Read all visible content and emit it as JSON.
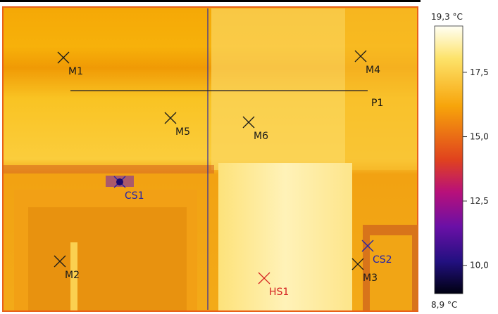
{
  "image": {
    "markers": [
      {
        "label": "M1",
        "kind": "spot"
      },
      {
        "label": "M2",
        "kind": "spot"
      },
      {
        "label": "M3",
        "kind": "spot"
      },
      {
        "label": "M4",
        "kind": "spot"
      },
      {
        "label": "M5",
        "kind": "spot"
      },
      {
        "label": "M6",
        "kind": "spot"
      },
      {
        "label": "CS1",
        "kind": "cold"
      },
      {
        "label": "CS2",
        "kind": "cold"
      },
      {
        "label": "HS1",
        "kind": "hot"
      }
    ],
    "profile_line": "P1"
  },
  "colorbar": {
    "max": 19.3,
    "max_label": "19,3 °C",
    "min": 8.9,
    "min_label": "8,9 °C",
    "ticks": [
      {
        "value": 17.5,
        "label": "17,5"
      },
      {
        "value": 15.0,
        "label": "15,0"
      },
      {
        "value": 12.5,
        "label": "12,5"
      },
      {
        "value": 10.0,
        "label": "10,0"
      }
    ]
  }
}
